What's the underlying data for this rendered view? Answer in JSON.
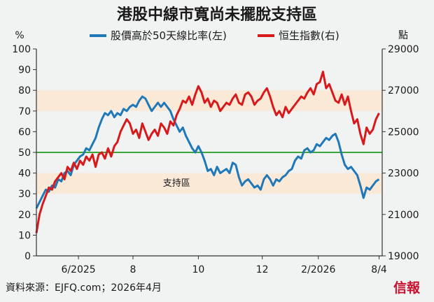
{
  "chart_data": {
    "type": "line",
    "title": "港股中線市寬尚未擺脫支持區",
    "left_unit": "%",
    "right_unit": "點",
    "left_ylim": [
      0,
      100
    ],
    "right_ylim": [
      19000,
      29000
    ],
    "left_ticks": [
      0,
      10,
      20,
      30,
      40,
      50,
      60,
      70,
      80,
      90,
      100
    ],
    "right_ticks": [
      19000,
      21000,
      23000,
      25000,
      27000,
      29000
    ],
    "x_ticks": [
      {
        "label": "6/2025",
        "pos": 27
      },
      {
        "label": "8",
        "pos": 62
      },
      {
        "label": "10",
        "pos": 104
      },
      {
        "label": "12",
        "pos": 145
      },
      {
        "label": "2/2026",
        "pos": 181
      },
      {
        "label": "8/4",
        "pos": 220
      }
    ],
    "x_range": [
      0,
      222
    ],
    "bands": [
      {
        "from": 70,
        "to": 80
      },
      {
        "from": 30,
        "to": 40
      }
    ],
    "band_color": "#fbe9d7",
    "reference_line": {
      "value": 50,
      "color": "#3aa63a"
    },
    "band_label": {
      "text": "支持區",
      "x": 90,
      "y": 35.5
    },
    "series": [
      {
        "name": "股價高於50天線比率(左)",
        "axis": "left",
        "color": "#1f78b8",
        "points": [
          [
            0,
            23
          ],
          [
            2,
            26
          ],
          [
            4,
            29
          ],
          [
            6,
            32
          ],
          [
            8,
            31
          ],
          [
            10,
            34
          ],
          [
            12,
            33
          ],
          [
            14,
            37
          ],
          [
            16,
            36
          ],
          [
            18,
            40
          ],
          [
            20,
            41
          ],
          [
            22,
            39
          ],
          [
            24,
            44
          ],
          [
            26,
            46
          ],
          [
            28,
            48
          ],
          [
            30,
            49
          ],
          [
            32,
            52
          ],
          [
            34,
            51
          ],
          [
            36,
            54
          ],
          [
            38,
            57
          ],
          [
            40,
            62
          ],
          [
            42,
            66
          ],
          [
            44,
            69
          ],
          [
            46,
            68
          ],
          [
            48,
            70
          ],
          [
            50,
            67
          ],
          [
            52,
            69
          ],
          [
            54,
            68
          ],
          [
            56,
            71
          ],
          [
            58,
            70
          ],
          [
            60,
            72
          ],
          [
            62,
            73
          ],
          [
            64,
            72
          ],
          [
            66,
            75
          ],
          [
            68,
            77
          ],
          [
            70,
            76
          ],
          [
            72,
            73
          ],
          [
            74,
            70
          ],
          [
            76,
            72
          ],
          [
            78,
            74
          ],
          [
            80,
            72
          ],
          [
            82,
            74
          ],
          [
            84,
            72
          ],
          [
            86,
            70
          ],
          [
            88,
            66
          ],
          [
            90,
            63
          ],
          [
            92,
            60
          ],
          [
            94,
            62
          ],
          [
            96,
            58
          ],
          [
            98,
            55
          ],
          [
            100,
            52
          ],
          [
            102,
            50
          ],
          [
            104,
            53
          ],
          [
            106,
            50
          ],
          [
            108,
            46
          ],
          [
            110,
            41
          ],
          [
            112,
            42
          ],
          [
            114,
            39
          ],
          [
            116,
            43
          ],
          [
            118,
            40
          ],
          [
            120,
            41
          ],
          [
            122,
            42
          ],
          [
            124,
            40
          ],
          [
            126,
            45
          ],
          [
            128,
            44
          ],
          [
            130,
            38
          ],
          [
            132,
            34
          ],
          [
            134,
            36
          ],
          [
            136,
            37
          ],
          [
            138,
            35
          ],
          [
            140,
            33
          ],
          [
            142,
            34
          ],
          [
            144,
            32
          ],
          [
            146,
            37
          ],
          [
            148,
            39
          ],
          [
            150,
            37
          ],
          [
            152,
            34
          ],
          [
            154,
            37
          ],
          [
            156,
            36
          ],
          [
            158,
            38
          ],
          [
            160,
            39
          ],
          [
            162,
            41
          ],
          [
            164,
            42
          ],
          [
            166,
            46
          ],
          [
            168,
            48
          ],
          [
            170,
            47
          ],
          [
            172,
            51
          ],
          [
            174,
            52
          ],
          [
            176,
            50
          ],
          [
            178,
            51
          ],
          [
            180,
            54
          ],
          [
            182,
            53
          ],
          [
            184,
            55
          ],
          [
            186,
            57
          ],
          [
            188,
            56
          ],
          [
            190,
            58
          ],
          [
            192,
            59
          ],
          [
            194,
            55
          ],
          [
            196,
            49
          ],
          [
            198,
            44
          ],
          [
            200,
            42
          ],
          [
            202,
            43
          ],
          [
            204,
            41
          ],
          [
            206,
            39
          ],
          [
            208,
            34
          ],
          [
            210,
            28
          ],
          [
            212,
            33
          ],
          [
            214,
            32
          ],
          [
            216,
            34
          ],
          [
            218,
            36
          ],
          [
            220,
            37
          ]
        ]
      },
      {
        "name": "恒生指數(右)",
        "axis": "right",
        "color": "#d7191c",
        "points": [
          [
            0,
            20100
          ],
          [
            2,
            21000
          ],
          [
            4,
            21500
          ],
          [
            6,
            21900
          ],
          [
            8,
            22300
          ],
          [
            10,
            22200
          ],
          [
            12,
            22600
          ],
          [
            14,
            22800
          ],
          [
            16,
            23000
          ],
          [
            18,
            22700
          ],
          [
            20,
            23300
          ],
          [
            22,
            23100
          ],
          [
            24,
            23500
          ],
          [
            26,
            23200
          ],
          [
            28,
            23600
          ],
          [
            30,
            23400
          ],
          [
            32,
            23800
          ],
          [
            34,
            23600
          ],
          [
            36,
            23900
          ],
          [
            38,
            23300
          ],
          [
            40,
            23900
          ],
          [
            42,
            24000
          ],
          [
            44,
            23700
          ],
          [
            46,
            24200
          ],
          [
            48,
            23800
          ],
          [
            50,
            24300
          ],
          [
            52,
            24500
          ],
          [
            54,
            25000
          ],
          [
            56,
            25300
          ],
          [
            58,
            25600
          ],
          [
            60,
            25400
          ],
          [
            62,
            24900
          ],
          [
            64,
            25100
          ],
          [
            66,
            24700
          ],
          [
            68,
            25400
          ],
          [
            70,
            25000
          ],
          [
            72,
            24600
          ],
          [
            74,
            24900
          ],
          [
            76,
            25100
          ],
          [
            78,
            24800
          ],
          [
            80,
            25400
          ],
          [
            82,
            25200
          ],
          [
            84,
            24900
          ],
          [
            86,
            25500
          ],
          [
            88,
            25300
          ],
          [
            90,
            25800
          ],
          [
            92,
            26100
          ],
          [
            94,
            26500
          ],
          [
            96,
            26400
          ],
          [
            98,
            26700
          ],
          [
            100,
            26300
          ],
          [
            102,
            26800
          ],
          [
            104,
            27200
          ],
          [
            106,
            26900
          ],
          [
            108,
            26400
          ],
          [
            110,
            26600
          ],
          [
            112,
            26200
          ],
          [
            114,
            26500
          ],
          [
            116,
            26400
          ],
          [
            118,
            26000
          ],
          [
            120,
            26200
          ],
          [
            122,
            26400
          ],
          [
            124,
            26300
          ],
          [
            126,
            26600
          ],
          [
            128,
            26800
          ],
          [
            130,
            26400
          ],
          [
            132,
            26300
          ],
          [
            134,
            26800
          ],
          [
            136,
            26900
          ],
          [
            138,
            26700
          ],
          [
            140,
            26300
          ],
          [
            142,
            26500
          ],
          [
            144,
            26600
          ],
          [
            146,
            26900
          ],
          [
            148,
            27100
          ],
          [
            150,
            26700
          ],
          [
            152,
            26200
          ],
          [
            154,
            25800
          ],
          [
            156,
            26000
          ],
          [
            158,
            25700
          ],
          [
            160,
            26200
          ],
          [
            162,
            25900
          ],
          [
            164,
            26100
          ],
          [
            166,
            26300
          ],
          [
            168,
            26500
          ],
          [
            170,
            26700
          ],
          [
            172,
            26600
          ],
          [
            174,
            26900
          ],
          [
            176,
            27100
          ],
          [
            178,
            26800
          ],
          [
            180,
            27300
          ],
          [
            182,
            27400
          ],
          [
            184,
            27900
          ],
          [
            186,
            27100
          ],
          [
            188,
            27300
          ],
          [
            190,
            26900
          ],
          [
            192,
            26500
          ],
          [
            194,
            26400
          ],
          [
            196,
            26800
          ],
          [
            198,
            26300
          ],
          [
            200,
            26700
          ],
          [
            202,
            26000
          ],
          [
            204,
            25400
          ],
          [
            206,
            25600
          ],
          [
            208,
            24900
          ],
          [
            210,
            24400
          ],
          [
            212,
            25200
          ],
          [
            214,
            24900
          ],
          [
            216,
            25100
          ],
          [
            218,
            25600
          ],
          [
            220,
            25900
          ]
        ]
      }
    ]
  },
  "footer": {
    "source": "資料來源：EJFQ.com；2026年4月",
    "brand": "信報"
  }
}
